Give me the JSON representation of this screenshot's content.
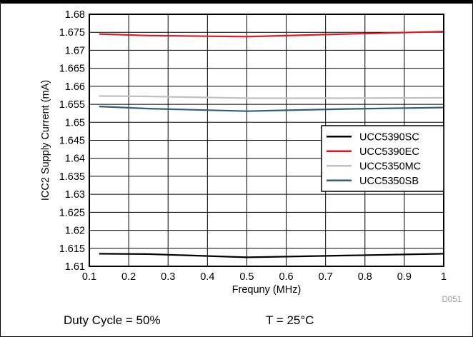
{
  "chart_data": {
    "type": "line",
    "title": "",
    "xlabel": "Frequny (MHz)",
    "ylabel": "ICC2 Supply Current (mA)",
    "xlim": [
      0.1,
      1
    ],
    "ylim": [
      1.61,
      1.68
    ],
    "x_ticks": [
      "0.1",
      "0.2",
      "0.3",
      "0.4",
      "0.5",
      "0.6",
      "0.7",
      "0.8",
      "0.9",
      "1"
    ],
    "y_ticks": [
      "1.61",
      "1.615",
      "1.62",
      "1.625",
      "1.63",
      "1.635",
      "1.64",
      "1.645",
      "1.65",
      "1.655",
      "1.66",
      "1.665",
      "1.67",
      "1.675",
      "1.68"
    ],
    "grid": true,
    "legend_position": "right",
    "series": [
      {
        "name": "UCC5390SC",
        "color": "#000000",
        "x": [
          0.125,
          0.25,
          0.5,
          0.75,
          1.0
        ],
        "y": [
          1.6135,
          1.6134,
          1.6125,
          1.613,
          1.6135
        ]
      },
      {
        "name": "UCC5390EC",
        "color": "#e8141c",
        "x": [
          0.125,
          0.25,
          0.5,
          0.75,
          1.0
        ],
        "y": [
          1.6745,
          1.6741,
          1.6738,
          1.6745,
          1.6752
        ]
      },
      {
        "name": "UCC5350MC",
        "color": "#c0c0c0",
        "x": [
          0.125,
          0.25,
          0.5,
          0.75,
          1.0
        ],
        "y": [
          1.6573,
          1.6572,
          1.6567,
          1.6567,
          1.6568
        ]
      },
      {
        "name": "UCC5350SB",
        "color": "#2f5f7a",
        "x": [
          0.125,
          0.25,
          0.5,
          0.75,
          1.0
        ],
        "y": [
          1.6544,
          1.6538,
          1.6531,
          1.6537,
          1.6541
        ]
      }
    ]
  },
  "watermark": "D051",
  "footnotes": {
    "duty_cycle": "Duty Cycle = 50%",
    "temperature": "T = 25°C"
  }
}
